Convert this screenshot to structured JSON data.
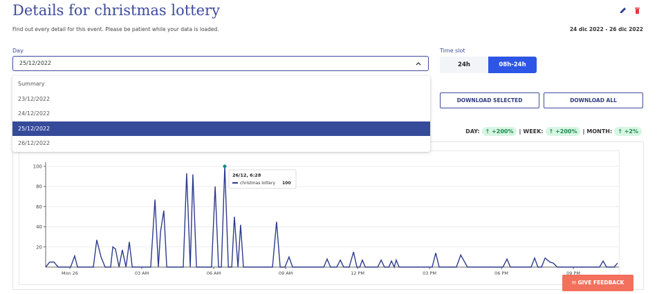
{
  "header": {
    "title": "Details for christmas lottery",
    "subtitle": "Find out every detail for this event. Please be patient while your data is loaded.",
    "date_range": "24 dic 2022 - 26 dic 2022"
  },
  "day_select": {
    "label": "Day",
    "selected": "25/12/2022",
    "options": [
      "Summary",
      "23/12/2022",
      "24/12/2022",
      "25/12/2022",
      "26/12/2022"
    ]
  },
  "time_slot": {
    "label": "Time slot",
    "options": [
      "24h",
      "08h-24h"
    ]
  },
  "buttons": [
    "DOWNLOAD SELECTED",
    "DOWNLOAD ALL"
  ],
  "stats": [
    {
      "label": "DAY:",
      "change": "+200%"
    },
    {
      "label": "WEEK:",
      "change": "+200%"
    },
    {
      "label": "MONTH:",
      "change": "+2%"
    }
  ],
  "feedback": "GIVE FEEDBACK",
  "chart_data": {
    "type": "line",
    "x": [
      -1.01,
      -0.84,
      -0.66,
      -0.49,
      0.03,
      0.2,
      0.32,
      0.98,
      1.12,
      1.3,
      1.47,
      1.7,
      1.79,
      1.9,
      2.05,
      2.19,
      2.34,
      2.48,
      2.6,
      3.37,
      3.55,
      3.69,
      3.78,
      3.92,
      4.04,
      4.73,
      4.87,
      5.02,
      5.13,
      5.28,
      5.91,
      6.06,
      6.2,
      6.32,
      6.46,
      6.61,
      6.75,
      6.86,
      7.01,
      7.12,
      7.24,
      8.45,
      8.62,
      8.77,
      8.97,
      9.14,
      9.29,
      10.59,
      10.73,
      10.87,
      11.13,
      11.28,
      11.42,
      11.65,
      11.83,
      11.97,
      12.09,
      12.2,
      12.32,
      12.84,
      12.98,
      13.12,
      13.3,
      13.41,
      13.53,
      13.61,
      13.73,
      15.11,
      15.26,
      15.4,
      16.12,
      16.3,
      16.58,
      18.06,
      18.23,
      18.37,
      19.24,
      19.38,
      19.52,
      19.67,
      19.82,
      20.02,
      20.16,
      20.33,
      22.09,
      22.24,
      22.38,
      22.7,
      22.84
    ],
    "series": [
      {
        "name": "christmas lottery",
        "color": "#2c3a8c",
        "values": [
          0,
          5,
          5,
          0,
          0,
          11,
          0,
          0,
          27,
          10,
          0,
          0,
          20,
          18,
          0,
          17,
          0,
          25,
          0,
          0,
          67,
          0,
          35,
          56,
          0,
          0,
          93,
          0,
          92,
          0,
          0,
          80,
          0,
          0,
          100,
          0,
          0,
          50,
          0,
          42,
          0,
          0,
          45,
          0,
          0,
          10,
          0,
          0,
          8,
          0,
          0,
          7,
          0,
          0,
          15,
          0,
          0,
          7,
          0,
          0,
          7,
          0,
          0,
          6,
          0,
          7,
          0,
          0,
          14,
          0,
          0,
          12,
          0,
          0,
          8,
          0,
          0,
          9,
          0,
          0,
          9,
          5,
          4,
          0,
          0,
          6,
          0,
          0,
          4
        ]
      }
    ],
    "xlim": [
      -1.01,
      22.9
    ],
    "xticks": [
      {
        "value": 0,
        "label": "Mon 26"
      },
      {
        "value": 3,
        "label": "03 AM"
      },
      {
        "value": 6,
        "label": "06 AM"
      },
      {
        "value": 9,
        "label": "09 AM"
      },
      {
        "value": 12,
        "label": "12 PM"
      },
      {
        "value": 15,
        "label": "03 PM"
      },
      {
        "value": 18,
        "label": "06 PM"
      },
      {
        "value": 21,
        "label": "09 PM"
      }
    ],
    "ylim": [
      0,
      100
    ],
    "yticks": [
      20,
      40,
      60,
      80,
      100
    ],
    "grid": true,
    "tooltip": "26/12, 6:28"
  }
}
